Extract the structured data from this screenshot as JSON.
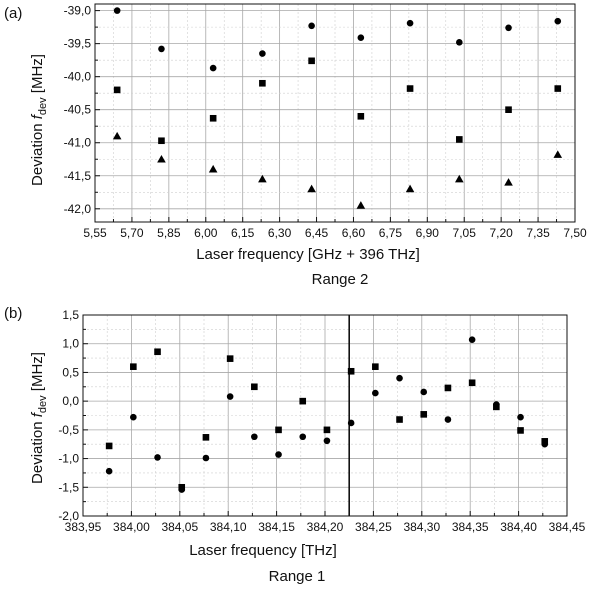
{
  "chart_data": [
    {
      "type": "scatter",
      "panel_label": "(a)",
      "range_label": "Range 2",
      "xlabel": "Laser frequency [GHz + 396 THz]",
      "ylabel_main": "Deviation ",
      "ylabel_var": "f",
      "ylabel_sub": "dev",
      "ylabel_unit": " [MHz]",
      "xlim": [
        5.55,
        7.5
      ],
      "ylim": [
        -42.2,
        -38.9
      ],
      "xticks": [
        5.55,
        5.7,
        5.85,
        6.0,
        6.15,
        6.3,
        6.45,
        6.6,
        6.75,
        6.9,
        7.05,
        7.2,
        7.35,
        7.5
      ],
      "xtick_labels": [
        "5,55",
        "5,70",
        "5,85",
        "6,00",
        "6,15",
        "6,30",
        "6,45",
        "6,60",
        "6,75",
        "6,90",
        "7,05",
        "7,20",
        "7,35",
        "7,50"
      ],
      "yticks": [
        -42.0,
        -41.5,
        -41.0,
        -40.5,
        -40.0,
        -39.5,
        -39.0
      ],
      "ytick_labels": [
        "-42,0",
        "-41,5",
        "-41,0",
        "-40,5",
        "-40,0",
        "-39,5",
        "-39,0"
      ],
      "grid": true,
      "series": [
        {
          "marker": "circle",
          "x": [
            5.64,
            5.82,
            6.03,
            6.23,
            6.43,
            6.63,
            6.83,
            7.03,
            7.23,
            7.43
          ],
          "y": [
            -39.0,
            -39.58,
            -39.87,
            -39.65,
            -39.23,
            -39.41,
            -39.19,
            -39.48,
            -39.26,
            -39.16
          ]
        },
        {
          "marker": "square",
          "x": [
            5.64,
            5.82,
            6.03,
            6.23,
            6.43,
            6.63,
            6.83,
            7.03,
            7.23,
            7.43
          ],
          "y": [
            -40.2,
            -40.97,
            -40.63,
            -40.1,
            -39.76,
            -40.6,
            -40.18,
            -40.95,
            -40.5,
            -40.18
          ]
        },
        {
          "marker": "triangle",
          "x": [
            5.64,
            5.82,
            6.03,
            6.23,
            6.43,
            6.63,
            6.83,
            7.03,
            7.23,
            7.43
          ],
          "y": [
            -40.9,
            -41.25,
            -41.4,
            -41.55,
            -41.7,
            -41.95,
            -41.7,
            -41.55,
            -41.6,
            -41.18
          ]
        }
      ]
    },
    {
      "type": "scatter",
      "panel_label": "(b)",
      "range_label": "Range 1",
      "xlabel": "Laser frequency [THz]",
      "ylabel_main": "Deviation ",
      "ylabel_var": "f",
      "ylabel_sub": "dev",
      "ylabel_unit": " [MHz]",
      "xlim": [
        383.95,
        384.45
      ],
      "ylim": [
        -2.0,
        1.5
      ],
      "xticks": [
        383.95,
        384.0,
        384.05,
        384.1,
        384.15,
        384.2,
        384.25,
        384.3,
        384.35,
        384.4,
        384.45
      ],
      "xtick_labels": [
        "383,95",
        "384,00",
        "384,05",
        "384,10",
        "384,15",
        "384,20",
        "384,25",
        "384,30",
        "384,35",
        "384,40",
        "384,45"
      ],
      "yticks": [
        -2.0,
        -1.5,
        -1.0,
        -0.5,
        0.0,
        0.5,
        1.0,
        1.5
      ],
      "ytick_labels": [
        "-2,0",
        "-1,5",
        "-1,0",
        "-0,5",
        "0,0",
        "0,5",
        "1,0",
        "1,5"
      ],
      "grid": true,
      "vline_x": 384.225,
      "series": [
        {
          "marker": "square",
          "x": [
            383.977,
            384.002,
            384.027,
            384.052,
            384.077,
            384.102,
            384.127,
            384.152,
            384.177,
            384.202,
            384.227,
            384.252,
            384.277,
            384.302,
            384.327,
            384.352,
            384.377,
            384.402,
            384.427
          ],
          "y": [
            -0.78,
            0.6,
            0.86,
            -1.5,
            -0.63,
            0.74,
            0.25,
            -0.5,
            0.0,
            -0.5,
            0.52,
            0.6,
            -0.32,
            -0.23,
            0.23,
            0.32,
            -0.1,
            -0.51,
            -0.7
          ]
        },
        {
          "marker": "circle",
          "x": [
            383.977,
            384.002,
            384.027,
            384.052,
            384.077,
            384.102,
            384.127,
            384.152,
            384.177,
            384.202,
            384.227,
            384.252,
            384.277,
            384.302,
            384.327,
            384.352,
            384.377,
            384.402,
            384.427
          ],
          "y": [
            -1.22,
            -0.28,
            -0.98,
            -1.54,
            -0.99,
            0.08,
            -0.62,
            -0.93,
            -0.62,
            -0.69,
            -0.38,
            0.14,
            0.4,
            0.16,
            -0.32,
            1.07,
            -0.06,
            -0.28,
            -0.75
          ]
        }
      ]
    }
  ]
}
